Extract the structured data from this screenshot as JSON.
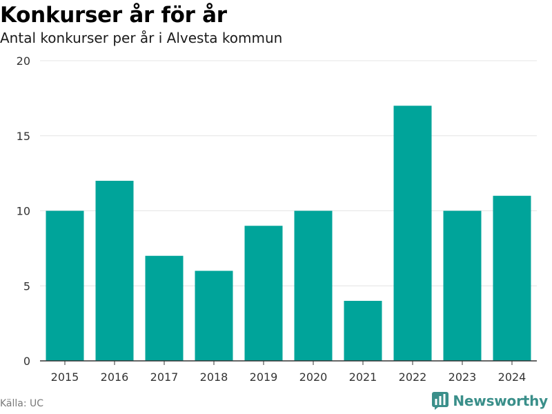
{
  "header": {
    "title": "Konkurser år för år",
    "subtitle": "Antal konkurser per år i Alvesta kommun"
  },
  "footer": {
    "source": "Källa: UC",
    "brand": "Newsworthy",
    "brand_icon": "newsworthy-chart-logo-icon"
  },
  "colors": {
    "bar": "#00a49a",
    "brand": "#3a8f8a",
    "grid": "#e4e4e4",
    "axis": "#333333"
  },
  "chart_data": {
    "type": "bar",
    "categories": [
      "2015",
      "2016",
      "2017",
      "2018",
      "2019",
      "2020",
      "2021",
      "2022",
      "2023",
      "2024"
    ],
    "values": [
      10,
      12,
      7,
      6,
      9,
      10,
      4,
      17,
      10,
      11
    ],
    "title": "Konkurser år för år",
    "subtitle": "Antal konkurser per år i Alvesta kommun",
    "xlabel": "",
    "ylabel": "",
    "ylim": [
      0,
      20
    ],
    "yticks": [
      0,
      5,
      10,
      15,
      20
    ],
    "grid": true,
    "legend": "none"
  }
}
